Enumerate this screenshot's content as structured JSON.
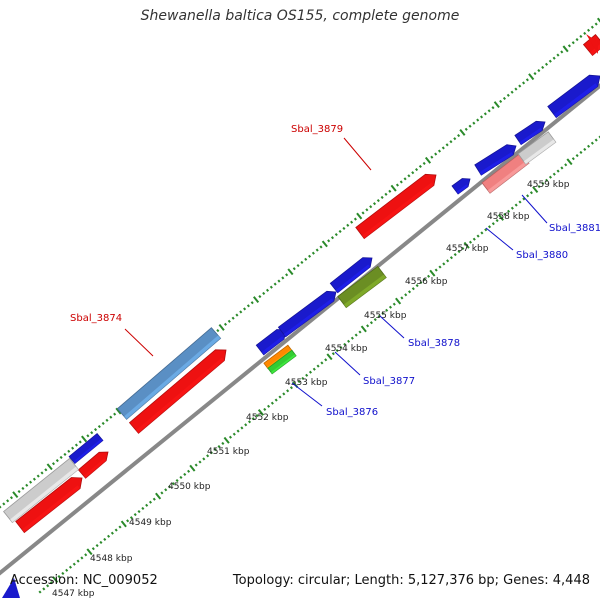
{
  "title": "Shewanella baltica OS155, complete genome",
  "footer": {
    "accession": "Accession: NC_009052",
    "summary": "Topology: circular; Length: 5,127,376 bp; Genes: 4,448"
  },
  "colors": {
    "background": "#ffffff",
    "backbone": "#888888",
    "tick": "#2a8a2a",
    "tick_label": "#222222",
    "label_forward": "#cc0000",
    "label_reverse": "#1010cc",
    "callout_forward": "#cc0000",
    "callout_reverse": "#1010cc"
  },
  "ticks": [
    {
      "label": "4547 kbp"
    },
    {
      "label": "4548 kbp"
    },
    {
      "label": "4549 kbp"
    },
    {
      "label": "4550 kbp"
    },
    {
      "label": "4551 kbp"
    },
    {
      "label": "4552 kbp"
    },
    {
      "label": "4553 kbp"
    },
    {
      "label": "4554 kbp"
    },
    {
      "label": "4555 kbp"
    },
    {
      "label": "4556 kbp"
    },
    {
      "label": "4557 kbp"
    },
    {
      "label": "4558 kbp"
    },
    {
      "label": "4559 kbp"
    }
  ],
  "features": [
    {
      "strand": "forward",
      "color": "#ee1111"
    },
    {
      "strand": "forward",
      "color": "#ee1111"
    },
    {
      "strand": "forward",
      "color": "#ee1111"
    },
    {
      "strand": "forward",
      "color": "#ee1111"
    },
    {
      "strand": "forward",
      "color": "#cccccc"
    },
    {
      "strand": "forward",
      "color": "#5a8fc4"
    },
    {
      "strand": "forward",
      "color": "#1a1acc"
    },
    {
      "strand": "forward",
      "color": "#ee1111"
    },
    {
      "strand": "forward",
      "color": "#1a1acc"
    },
    {
      "strand": "forward",
      "color": "#1a1acc"
    },
    {
      "strand": "forward",
      "color": "#1a1acc"
    },
    {
      "strand": "forward",
      "color": "#1a1acc"
    },
    {
      "strand": "forward",
      "color": "#1a1acc"
    },
    {
      "strand": "forward",
      "color": "#1a1acc"
    },
    {
      "strand": "reverse",
      "color": "#f08080"
    },
    {
      "strand": "reverse",
      "color": "#cccccc"
    },
    {
      "strand": "reverse",
      "color": "#6b8e23"
    },
    {
      "strand": "reverse",
      "color": "#ff8800"
    },
    {
      "strand": "reverse",
      "color": "#33cc33"
    }
  ],
  "labels": [
    {
      "text": "Sbal_3874",
      "strand": "forward"
    },
    {
      "text": "Sbal_3879",
      "strand": "forward"
    },
    {
      "text": "Sbal_3876",
      "strand": "reverse"
    },
    {
      "text": "Sbal_3877",
      "strand": "reverse"
    },
    {
      "text": "Sbal_3878",
      "strand": "reverse"
    },
    {
      "text": "Sbal_3880",
      "strand": "reverse"
    },
    {
      "text": "Sbal_3881",
      "strand": "reverse"
    }
  ]
}
